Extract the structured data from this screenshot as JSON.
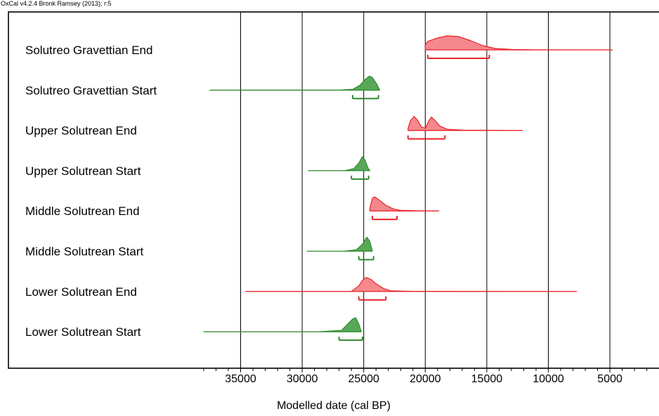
{
  "header": "OxCal v4.2.4 Bronk Ramsey (2013); r:5",
  "chart_data": {
    "type": "area",
    "title": "",
    "xlabel": "Modelled date (cal BP)",
    "ylabel": "",
    "xlim": [
      38000,
      0
    ],
    "x_ticks": [
      35000,
      30000,
      25000,
      20000,
      15000,
      10000,
      5000
    ],
    "x_minor_step": 1000,
    "grid": true,
    "colors": {
      "end": "#e8212a",
      "start": "#2e8b2e",
      "end_fill": "#f4888c",
      "start_fill": "#58a858"
    },
    "series": [
      {
        "name": "Solutreo Gravettian End",
        "kind": "end",
        "range": [
          20000,
          4800
        ],
        "hpd": [
          19800,
          14800
        ],
        "density": [
          [
            20000,
            0.35
          ],
          [
            19800,
            0.6
          ],
          [
            19000,
            0.85
          ],
          [
            18200,
            1.0
          ],
          [
            17300,
            0.95
          ],
          [
            16300,
            0.65
          ],
          [
            15300,
            0.3
          ],
          [
            14300,
            0.1
          ],
          [
            13000,
            0.03
          ],
          [
            11000,
            0.01
          ],
          [
            4800,
            0.0
          ]
        ]
      },
      {
        "name": "Solutreo Gravettian Start",
        "kind": "start",
        "range": [
          37500,
          23700
        ],
        "hpd": [
          25900,
          23800
        ],
        "density": [
          [
            37500,
            0
          ],
          [
            27000,
            0.005
          ],
          [
            25900,
            0.06
          ],
          [
            25300,
            0.35
          ],
          [
            24900,
            0.75
          ],
          [
            24550,
            1.0
          ],
          [
            24300,
            0.9
          ],
          [
            23950,
            0.45
          ],
          [
            23700,
            0.0
          ]
        ]
      },
      {
        "name": "Upper Solutrean End",
        "kind": "end",
        "range": [
          21400,
          12100
        ],
        "hpd": [
          21400,
          18400
        ],
        "density": [
          [
            21400,
            0.15
          ],
          [
            21200,
            0.7
          ],
          [
            20900,
            1.0
          ],
          [
            20650,
            0.75
          ],
          [
            20300,
            0.25
          ],
          [
            20000,
            0.15
          ],
          [
            19700,
            0.7
          ],
          [
            19500,
            0.95
          ],
          [
            19200,
            0.7
          ],
          [
            18800,
            0.3
          ],
          [
            18200,
            0.08
          ],
          [
            17000,
            0.02
          ],
          [
            12100,
            0.0
          ]
        ]
      },
      {
        "name": "Upper Solutrean Start",
        "kind": "start",
        "range": [
          29500,
          24500
        ],
        "hpd": [
          26000,
          24600
        ],
        "density": [
          [
            29500,
            0
          ],
          [
            26500,
            0.01
          ],
          [
            25800,
            0.15
          ],
          [
            25400,
            0.55
          ],
          [
            25100,
            1.0
          ],
          [
            24900,
            0.75
          ],
          [
            24650,
            0.2
          ],
          [
            24500,
            0.0
          ]
        ]
      },
      {
        "name": "Middle Solutrean End",
        "kind": "end",
        "range": [
          24500,
          18900
        ],
        "hpd": [
          24300,
          22300
        ],
        "density": [
          [
            24500,
            0.2
          ],
          [
            24300,
            0.9
          ],
          [
            24100,
            1.0
          ],
          [
            23700,
            0.75
          ],
          [
            23200,
            0.4
          ],
          [
            22600,
            0.15
          ],
          [
            22000,
            0.04
          ],
          [
            20500,
            0.01
          ],
          [
            18900,
            0.0
          ]
        ]
      },
      {
        "name": "Middle Solutrean Start",
        "kind": "start",
        "range": [
          29600,
          24300
        ],
        "hpd": [
          25400,
          24200
        ],
        "density": [
          [
            29600,
            0
          ],
          [
            26500,
            0.01
          ],
          [
            25600,
            0.1
          ],
          [
            25100,
            0.5
          ],
          [
            24750,
            1.0
          ],
          [
            24500,
            0.7
          ],
          [
            24300,
            0.0
          ]
        ]
      },
      {
        "name": "Lower Solutrean End",
        "kind": "end",
        "range": [
          34600,
          7700
        ],
        "hpd": [
          25400,
          23200
        ],
        "density": [
          [
            34600,
            0
          ],
          [
            26000,
            0.01
          ],
          [
            25400,
            0.4
          ],
          [
            25100,
            0.8
          ],
          [
            24800,
            1.0
          ],
          [
            24400,
            0.85
          ],
          [
            24000,
            0.55
          ],
          [
            23400,
            0.22
          ],
          [
            22800,
            0.05
          ],
          [
            21000,
            0.01
          ],
          [
            7700,
            0.0
          ]
        ]
      },
      {
        "name": "Lower Solutrean Start",
        "kind": "start",
        "range": [
          38000,
          25200
        ],
        "hpd": [
          27000,
          25100
        ],
        "density": [
          [
            38000,
            0
          ],
          [
            28500,
            0.005
          ],
          [
            26800,
            0.1
          ],
          [
            26300,
            0.55
          ],
          [
            25900,
            0.9
          ],
          [
            25650,
            1.0
          ],
          [
            25400,
            0.55
          ],
          [
            25200,
            0.0
          ]
        ]
      }
    ]
  }
}
